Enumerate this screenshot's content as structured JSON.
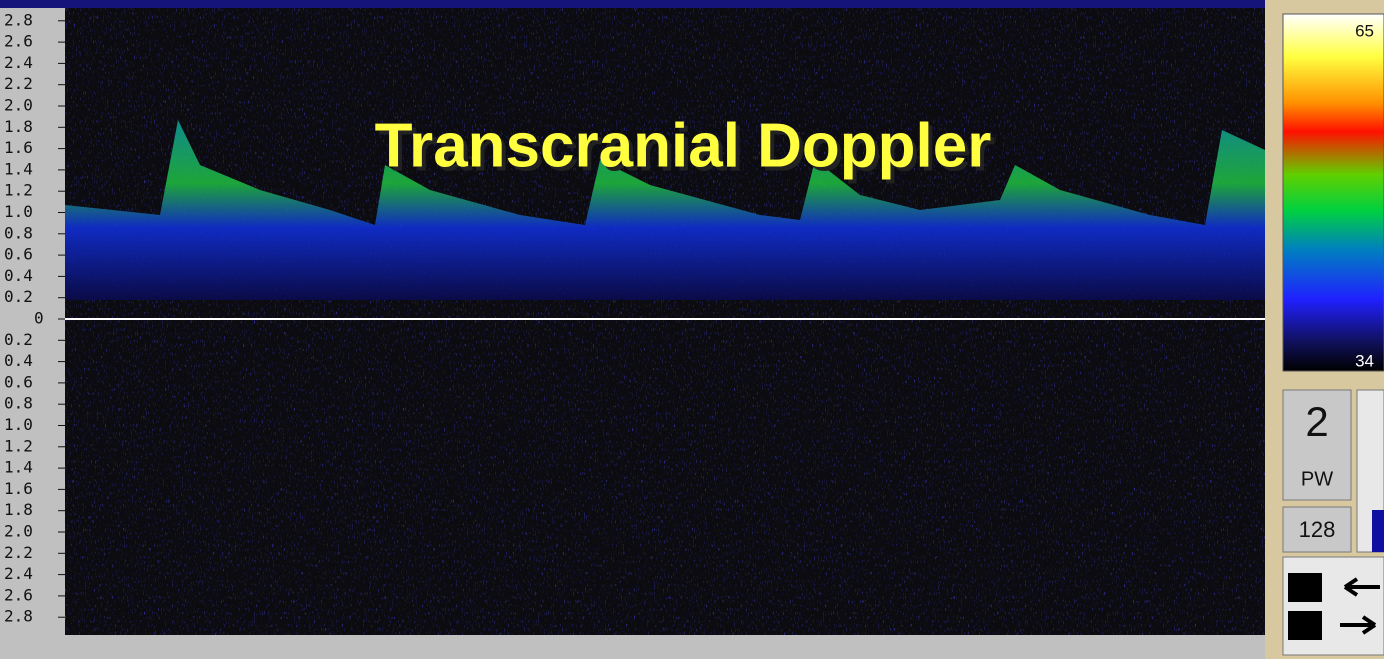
{
  "title": "Transcranial Doppler",
  "scale": {
    "upper": [
      "2.8",
      "2.6",
      "2.4",
      "2.2",
      "2.0",
      "1.8",
      "1.6",
      "1.4",
      "1.2",
      "1.0",
      "0.8",
      "0.6",
      "0.4",
      "0.2"
    ],
    "zero": "0",
    "lower": [
      "0.2",
      "0.4",
      "0.6",
      "0.8",
      "1.0",
      "1.2",
      "1.4",
      "1.6",
      "1.8",
      "2.0",
      "2.2",
      "2.4",
      "2.6",
      "2.8"
    ]
  },
  "colorbar": {
    "max": "65",
    "min": "34"
  },
  "panel": {
    "channel": "2",
    "mode": "PW",
    "depth": "128"
  }
}
